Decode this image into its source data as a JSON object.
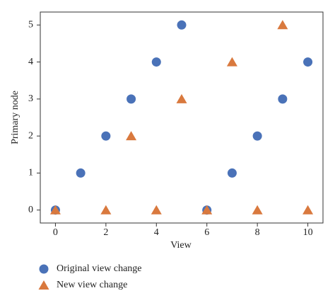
{
  "chart_data": {
    "type": "scatter",
    "x_label": "View",
    "y_label": "Primary node",
    "series": [
      {
        "name": "Original view change",
        "color": "#4a72b8",
        "marker": "circle",
        "x": [
          0,
          1,
          2,
          3,
          4,
          5,
          6,
          7,
          8,
          9,
          10
        ],
        "values": [
          0,
          1,
          2,
          3,
          4,
          5,
          0,
          1,
          2,
          3,
          4
        ]
      },
      {
        "name": "New view change",
        "color": "#d9793e",
        "marker": "triangle",
        "x": [
          0,
          2,
          3,
          4,
          5,
          6,
          7,
          8,
          9,
          10
        ],
        "values": [
          0,
          0,
          2,
          0,
          3,
          0,
          4,
          0,
          5,
          0
        ]
      }
    ],
    "xlim": [
      -0.6,
      10.6
    ],
    "xticks": [
      0,
      2,
      4,
      6,
      8,
      10
    ],
    "ylim": [
      -0.35,
      5.35
    ],
    "yticks": [
      0,
      1,
      2,
      3,
      4,
      5
    ]
  }
}
